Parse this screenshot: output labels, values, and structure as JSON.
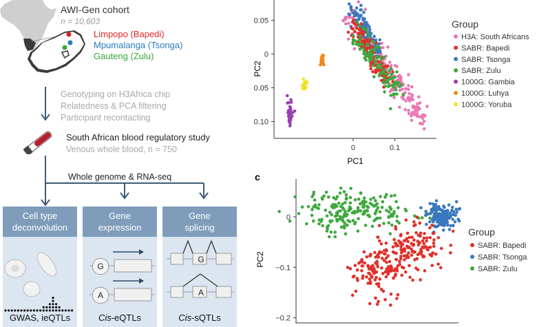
{
  "left_panel": {
    "cohort_title": "AWI-Gen cohort",
    "cohort_n": "n = 10,603",
    "regions": [
      {
        "label": "Limpopo (Bapedi)",
        "color": "#d62728"
      },
      {
        "label": "Mpumalanga (Tsonga)",
        "color": "#2b7bba"
      },
      {
        "label": "Gauteng (Zulu)",
        "color": "#3aa63a"
      }
    ],
    "steps": [
      "Genotyping on H3Africa chip",
      "Relatedness & PCA filtering",
      "Participant recontacting"
    ],
    "study_title": "South African blood regulatory study",
    "study_sub": "Venous whole blood, n = 750",
    "wg_label": "Whole genome & RNA-seq",
    "boxes": [
      {
        "head_line1": "Cell type",
        "head_line2": "deconvolution",
        "foot": "GWAS, ieQTLs"
      },
      {
        "head_line1": "Gene",
        "head_line2": "expression",
        "foot": "Cis-eQTLs"
      },
      {
        "head_line1": "Gene",
        "head_line2": "splicing",
        "foot": "Cis-sQTLs"
      }
    ],
    "gene_letters": [
      "G",
      "A"
    ]
  },
  "chart_data": [
    {
      "type": "scatter",
      "xlabel": "PC1",
      "ylabel": "PC2",
      "xlim": [
        -0.19,
        0.2
      ],
      "ylim": [
        -0.125,
        0.08
      ],
      "xticks": [
        0,
        0.1
      ],
      "yticks": [
        0.05,
        0,
        -0.05,
        -0.1
      ],
      "xtick_labels": [
        "0",
        "0.1"
      ],
      "ytick_labels": [
        "0.05",
        "0",
        "−0.05",
        "−0.10"
      ],
      "legend_title": "Group",
      "legend_position": "right",
      "series": [
        {
          "name": "H3A: South Africans",
          "color": "#e879b3"
        },
        {
          "name": "SABR: Bapedi",
          "color": "#e0302a"
        },
        {
          "name": "SABR: Tsonga",
          "color": "#3a78bd"
        },
        {
          "name": "SABR: Zulu",
          "color": "#3fa83f"
        },
        {
          "name": "1000G: Gambia",
          "color": "#9a3fb0"
        },
        {
          "name": "1000G: Luhya",
          "color": "#f08a1c"
        },
        {
          "name": "1000G: Yoruba",
          "color": "#f2e22c"
        }
      ]
    },
    {
      "type": "scatter",
      "panel_letter": "c",
      "ylabel": "PC2",
      "ylim": [
        -0.21,
        0.075
      ],
      "yticks": [
        0,
        -0.1,
        -0.2
      ],
      "ytick_labels": [
        "0",
        "−0.1",
        "−0.2"
      ],
      "legend_title": "Group",
      "legend_position": "right",
      "series": [
        {
          "name": "SABR: Bapedi",
          "color": "#e0302a"
        },
        {
          "name": "SABR: Tsonga",
          "color": "#3a78bd"
        },
        {
          "name": "SABR: Zulu",
          "color": "#3fa83f"
        }
      ]
    }
  ]
}
